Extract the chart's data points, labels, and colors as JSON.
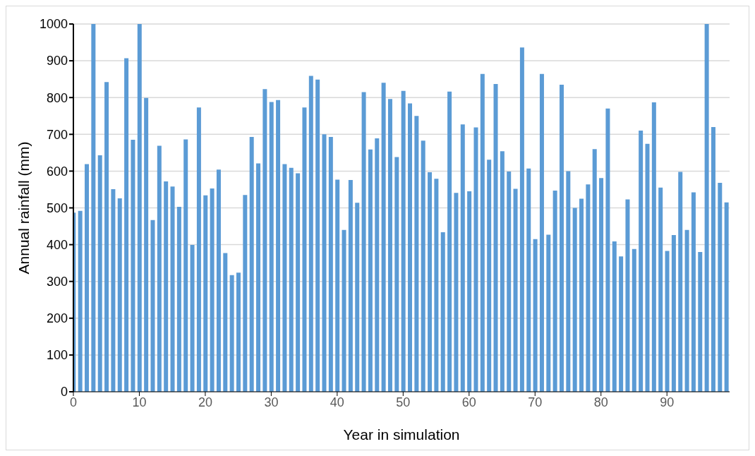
{
  "chart_data": {
    "type": "bar",
    "xlabel": "Year in simulation",
    "ylabel": "Annual rainfall (mm)",
    "x": [
      0,
      1,
      2,
      3,
      4,
      5,
      6,
      7,
      8,
      9,
      10,
      11,
      12,
      13,
      14,
      15,
      16,
      17,
      18,
      19,
      20,
      21,
      22,
      23,
      24,
      25,
      26,
      27,
      28,
      29,
      30,
      31,
      32,
      33,
      34,
      35,
      36,
      37,
      38,
      39,
      40,
      41,
      42,
      43,
      44,
      45,
      46,
      47,
      48,
      49,
      50,
      51,
      52,
      53,
      54,
      55,
      56,
      57,
      58,
      59,
      60,
      61,
      62,
      63,
      64,
      65,
      66,
      67,
      68,
      69,
      70,
      71,
      72,
      73,
      74,
      75,
      76,
      77,
      78,
      79,
      80,
      81,
      82,
      83,
      84,
      85,
      86,
      87,
      88,
      89,
      90,
      91,
      92,
      93,
      94,
      95,
      96,
      97,
      98,
      99
    ],
    "values": [
      487,
      492,
      619,
      1000,
      643,
      842,
      551,
      526,
      907,
      685,
      1000,
      799,
      467,
      669,
      572,
      558,
      503,
      686,
      399,
      773,
      534,
      553,
      604,
      377,
      317,
      324,
      535,
      693,
      621,
      823,
      788,
      793,
      619,
      609,
      594,
      773,
      859,
      849,
      700,
      693,
      577,
      440,
      576,
      514,
      815,
      659,
      689,
      840,
      796,
      638,
      818,
      784,
      750,
      683,
      597,
      579,
      434,
      816,
      541,
      727,
      545,
      719,
      864,
      631,
      837,
      654,
      599,
      552,
      936,
      607,
      415,
      864,
      427,
      547,
      835,
      600,
      500,
      525,
      564,
      660,
      581,
      770,
      409,
      368,
      523,
      388,
      710,
      674,
      787,
      555,
      383,
      426,
      598,
      440,
      542,
      380,
      1000,
      720,
      568,
      515
    ],
    "color": "#5b9bd5",
    "xlim": [
      0,
      99.5
    ],
    "xticks": [
      0,
      10,
      20,
      30,
      40,
      50,
      60,
      70,
      80,
      90
    ],
    "ylim": [
      0,
      1000
    ],
    "yticks": [
      0,
      100,
      200,
      300,
      400,
      500,
      600,
      700,
      800,
      900,
      1000
    ],
    "grid": "y",
    "legend": false
  }
}
